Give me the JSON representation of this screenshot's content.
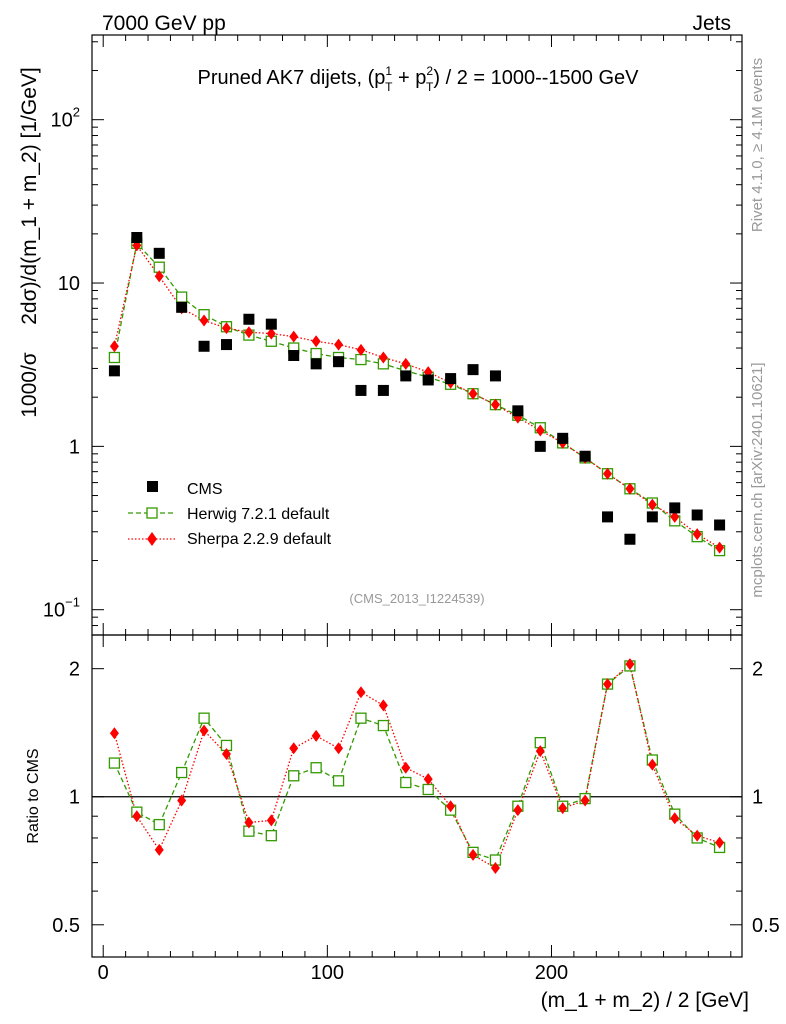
{
  "header": {
    "left": "7000 GeV pp",
    "right": "Jets",
    "side_top": "Rivet 4.1.0, ≥ 4.1M events",
    "side_bottom": "mcplots.cern.ch [arXiv:2401.10621]"
  },
  "colors": {
    "data": "#000000",
    "herwig": "#339a00",
    "sherpa": "#ff0000",
    "frame": "#000000",
    "watermark": "#999999"
  },
  "chart_data": [
    {
      "type": "scatter",
      "name": "main",
      "title": "Pruned AK7 dijets, (p_T^1 + p_T^2) / 2 = 1000--1500 GeV",
      "title_parts": {
        "prefix": "Pruned AK7 dijets, (p",
        "sup1": "1",
        "sub1": "T",
        "plus": " + p",
        "sup2": "2",
        "sub2": "T",
        "suffix": ") / 2 = 1000--1500 GeV"
      },
      "ylabel_left": "1000/σ",
      "ylabel_right": "2dσ)/d(m_1 + m_2) [1/GeV]",
      "watermark": "(CMS_2013_I1224539)",
      "yscale": "log",
      "ylim": [
        0.07,
        330
      ],
      "xlim": [
        -5,
        285
      ],
      "yticks": [
        {
          "value": 0.1,
          "base": "10",
          "exp": "−1"
        },
        {
          "value": 1,
          "base": "1",
          "exp": ""
        },
        {
          "value": 10,
          "base": "10",
          "exp": ""
        },
        {
          "value": 100,
          "base": "10",
          "exp": "2"
        }
      ],
      "legend": {
        "position": "lower-left",
        "entries": [
          {
            "key": "cms",
            "label": "CMS"
          },
          {
            "key": "herwig",
            "label": "Herwig 7.2.1 default"
          },
          {
            "key": "sherpa",
            "label": "Sherpa 2.2.9 default"
          }
        ]
      },
      "x": [
        5,
        15,
        25,
        35,
        45,
        55,
        65,
        75,
        85,
        95,
        105,
        115,
        125,
        135,
        145,
        155,
        165,
        175,
        185,
        195,
        205,
        215,
        225,
        235,
        245,
        255,
        265,
        275
      ],
      "series": [
        {
          "key": "cms",
          "name": "CMS",
          "values": [
            2.9,
            19.0,
            15.2,
            7.1,
            4.1,
            4.2,
            6.0,
            5.6,
            3.6,
            3.2,
            3.3,
            2.2,
            2.2,
            2.7,
            2.55,
            2.6,
            2.95,
            2.7,
            1.65,
            1.0,
            1.12,
            0.87,
            0.37,
            0.27,
            0.37,
            0.42,
            0.38,
            0.33
          ]
        },
        {
          "key": "herwig",
          "name": "Herwig 7.2.1 default",
          "values": [
            3.5,
            17.5,
            12.5,
            8.2,
            6.4,
            5.4,
            4.8,
            4.4,
            4.0,
            3.7,
            3.5,
            3.4,
            3.2,
            2.9,
            2.65,
            2.4,
            2.1,
            1.8,
            1.55,
            1.3,
            1.05,
            0.85,
            0.68,
            0.55,
            0.45,
            0.35,
            0.28,
            0.23
          ]
        },
        {
          "key": "sherpa",
          "name": "Sherpa 2.2.9 default",
          "values": [
            4.1,
            17.0,
            11.0,
            7.0,
            5.9,
            5.3,
            5.0,
            4.9,
            4.7,
            4.4,
            4.2,
            3.9,
            3.5,
            3.2,
            2.85,
            2.45,
            2.1,
            1.8,
            1.5,
            1.25,
            1.05,
            0.85,
            0.68,
            0.55,
            0.44,
            0.37,
            0.29,
            0.24
          ]
        }
      ]
    },
    {
      "type": "scatter",
      "name": "ratio",
      "ylabel": "Ratio to CMS",
      "xlabel": "(m_1 + m_2) / 2 [GeV]",
      "yscale": "log",
      "ylim": [
        0.42,
        2.4
      ],
      "xlim": [
        -5,
        285
      ],
      "yticks": [
        0.5,
        1,
        2
      ],
      "ytick_labels": [
        "0.5",
        "1",
        "2"
      ],
      "xticks": [
        0,
        100,
        200
      ],
      "xtick_labels": [
        "0",
        "100",
        "200"
      ],
      "reference": 1,
      "x": [
        5,
        15,
        25,
        35,
        45,
        55,
        65,
        75,
        85,
        95,
        105,
        115,
        125,
        135,
        145,
        155,
        165,
        175,
        185,
        195,
        205,
        215,
        225,
        235,
        245,
        255,
        265,
        275
      ],
      "series": [
        {
          "key": "herwig",
          "name": "Herwig 7.2.1 default",
          "values": [
            1.2,
            0.92,
            0.86,
            1.14,
            1.53,
            1.32,
            0.83,
            0.81,
            1.12,
            1.17,
            1.09,
            1.53,
            1.47,
            1.08,
            1.04,
            0.93,
            0.74,
            0.71,
            0.95,
            1.34,
            0.95,
            0.99,
            1.84,
            2.03,
            1.22,
            0.91,
            0.8,
            0.76
          ]
        },
        {
          "key": "sherpa",
          "name": "Sherpa 2.2.9 default",
          "values": [
            1.41,
            0.9,
            0.75,
            0.98,
            1.43,
            1.26,
            0.87,
            0.88,
            1.3,
            1.39,
            1.3,
            1.76,
            1.64,
            1.17,
            1.1,
            0.95,
            0.73,
            0.68,
            0.93,
            1.28,
            0.94,
            0.98,
            1.84,
            2.05,
            1.19,
            0.89,
            0.81,
            0.78
          ]
        }
      ]
    }
  ]
}
